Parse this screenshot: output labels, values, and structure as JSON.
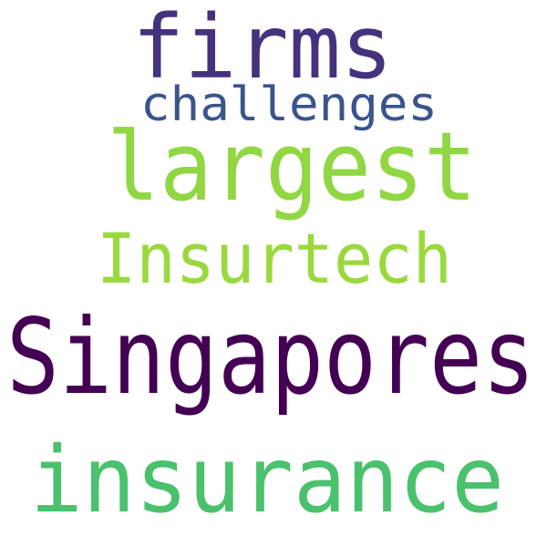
{
  "words": [
    {
      "id": "firms",
      "text": "firms",
      "color": "#46317e"
    },
    {
      "id": "challenges",
      "text": "challenges",
      "color": "#3a548c"
    },
    {
      "id": "largest",
      "text": "largest",
      "color": "#90d743"
    },
    {
      "id": "insurtech",
      "text": "Insurtech",
      "color": "#9ad93d"
    },
    {
      "id": "singapores",
      "text": "Singapores",
      "color": "#440154"
    },
    {
      "id": "insurance",
      "text": "insurance",
      "color": "#4ac16d"
    }
  ]
}
